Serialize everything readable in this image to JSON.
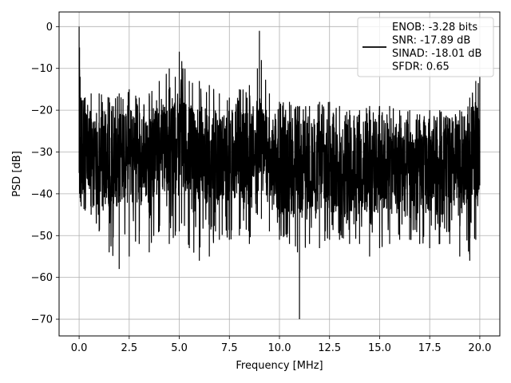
{
  "chart_data": {
    "type": "line",
    "xlabel": "Frequency [MHz]",
    "ylabel": "PSD [dB]",
    "xlim": [
      -1.0,
      21.0
    ],
    "ylim": [
      -74.0,
      3.5
    ],
    "xticks": [
      0.0,
      2.5,
      5.0,
      7.5,
      10.0,
      12.5,
      15.0,
      17.5,
      20.0
    ],
    "xtick_labels": [
      "0.0",
      "2.5",
      "5.0",
      "7.5",
      "10.0",
      "12.5",
      "15.0",
      "17.5",
      "20.0"
    ],
    "yticks": [
      0,
      -10,
      -20,
      -30,
      -40,
      -50,
      -60,
      -70
    ],
    "ytick_labels": [
      "0",
      "−10",
      "−20",
      "−30",
      "−40",
      "−50",
      "−60",
      "−70"
    ],
    "grid": true,
    "legend_position": "top-right",
    "legend": {
      "entries": [
        "ENOB: -3.28 bits",
        "SNR: -17.89 dB",
        "SINAD: -18.01 dB",
        "SFDR: 0.65"
      ]
    },
    "series": [
      {
        "color": "#000000",
        "x": [
          0.0,
          0.02,
          0.05,
          0.1,
          0.3,
          0.6,
          1.0,
          1.5,
          2.0,
          2.5,
          3.0,
          3.5,
          4.0,
          4.5,
          4.8,
          5.0,
          5.5,
          6.0,
          6.5,
          7.0,
          7.5,
          8.0,
          8.5,
          8.9,
          9.0,
          9.1,
          9.5,
          10.0,
          10.5,
          10.9,
          11.0,
          11.5,
          12.0,
          12.5,
          13.0,
          13.5,
          14.0,
          14.5,
          15.0,
          15.5,
          16.0,
          16.5,
          17.0,
          17.5,
          18.0,
          18.5,
          19.0,
          19.5,
          19.8,
          20.0
        ],
        "y_upper": [
          0.0,
          -5.0,
          -12.0,
          -17.0,
          -17.0,
          -16.0,
          -16.0,
          -17.0,
          -16.0,
          -15.0,
          -17.0,
          -16.0,
          -13.0,
          -10.0,
          -12.0,
          -6.0,
          -13.0,
          -13.0,
          -14.0,
          -16.0,
          -17.0,
          -15.0,
          -14.0,
          -10.0,
          -1.0,
          -8.0,
          -16.0,
          -18.0,
          -18.0,
          -19.0,
          -19.0,
          -19.0,
          -18.0,
          -18.0,
          -19.0,
          -20.0,
          -20.0,
          -19.0,
          -19.0,
          -19.0,
          -20.0,
          -20.0,
          -21.0,
          -20.0,
          -20.0,
          -22.0,
          -20.0,
          -17.0,
          -13.0,
          -12.0
        ],
        "y_band_top": [
          0.0,
          -8.0,
          -18.0,
          -20.0,
          -20.0,
          -20.0,
          -20.0,
          -20.0,
          -20.0,
          -20.0,
          -20.0,
          -20.0,
          -19.0,
          -18.0,
          -18.0,
          -17.0,
          -18.0,
          -19.0,
          -20.0,
          -20.0,
          -20.0,
          -20.0,
          -20.0,
          -20.0,
          -10.0,
          -19.0,
          -22.0,
          -22.0,
          -22.0,
          -22.0,
          -22.0,
          -22.0,
          -22.0,
          -22.0,
          -22.0,
          -22.0,
          -22.0,
          -22.0,
          -22.0,
          -22.0,
          -22.0,
          -22.0,
          -22.0,
          -22.0,
          -22.0,
          -22.0,
          -22.0,
          -20.0,
          -18.0,
          -16.0
        ],
        "y_band_bottom": [
          -35.0,
          -38.0,
          -40.0,
          -42.0,
          -42.0,
          -42.0,
          -43.0,
          -43.0,
          -43.0,
          -43.0,
          -43.0,
          -42.0,
          -40.0,
          -40.0,
          -40.0,
          -38.0,
          -40.0,
          -42.0,
          -42.0,
          -42.0,
          -42.0,
          -42.0,
          -42.0,
          -40.0,
          -30.0,
          -40.0,
          -44.0,
          -45.0,
          -45.0,
          -45.0,
          -45.0,
          -45.0,
          -45.0,
          -45.0,
          -45.0,
          -45.0,
          -45.0,
          -45.0,
          -45.0,
          -45.0,
          -45.0,
          -45.0,
          -45.0,
          -45.0,
          -45.0,
          -45.0,
          -45.0,
          -44.0,
          -42.0,
          -38.0
        ],
        "y_lower": [
          -35.0,
          -40.0,
          -41.0,
          -43.0,
          -44.0,
          -45.0,
          -49.0,
          -54.0,
          -58.0,
          -55.0,
          -52.0,
          -54.0,
          -49.0,
          -52.0,
          -50.0,
          -49.0,
          -53.0,
          -56.0,
          -55.0,
          -51.0,
          -51.0,
          -50.0,
          -52.0,
          -45.0,
          -35.0,
          -46.0,
          -49.0,
          -51.0,
          -52.0,
          -54.0,
          -70.0,
          -52.0,
          -53.0,
          -51.0,
          -51.0,
          -52.0,
          -52.0,
          -55.0,
          -53.0,
          -52.0,
          -51.0,
          -51.0,
          -52.0,
          -53.0,
          -52.0,
          -52.0,
          -55.0,
          -56.0,
          -51.0,
          -37.0
        ]
      }
    ]
  }
}
